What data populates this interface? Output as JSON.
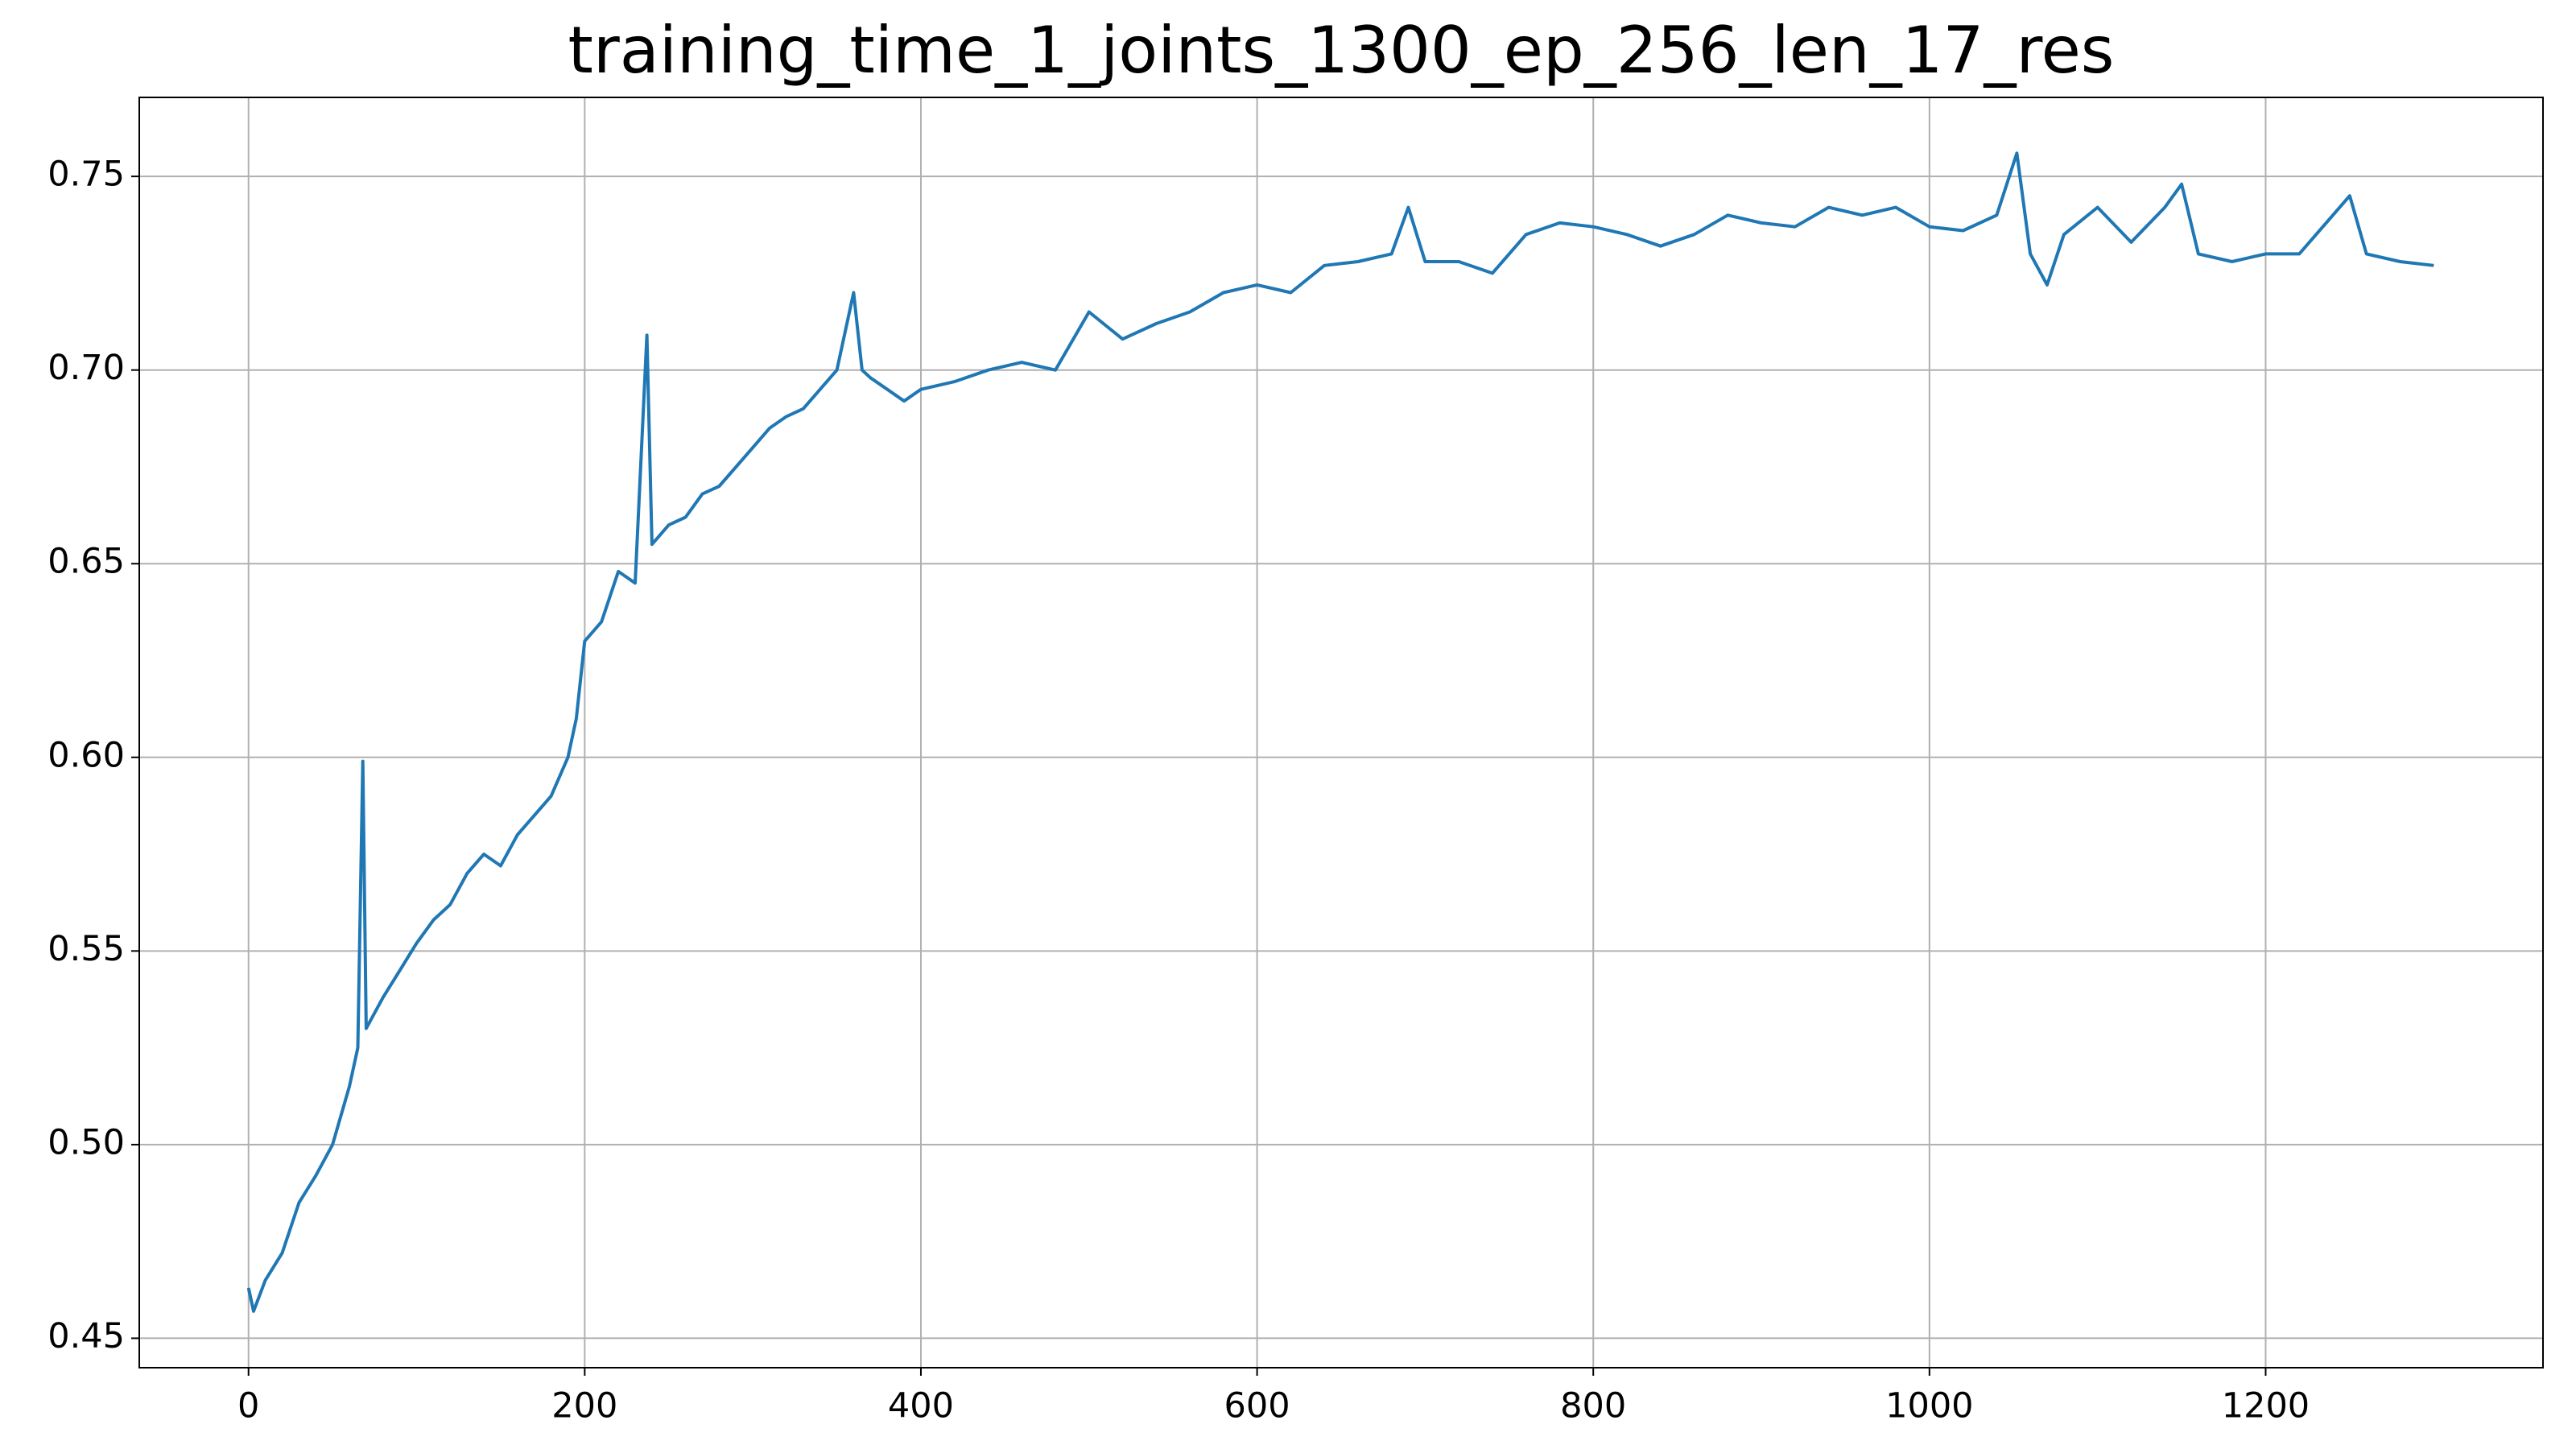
{
  "chart_data": {
    "type": "line",
    "title": "training_time_1_joints_1300_ep_256_len_17_res",
    "x": [
      0,
      3,
      10,
      20,
      30,
      40,
      50,
      60,
      65,
      68,
      70,
      80,
      90,
      100,
      110,
      120,
      130,
      140,
      150,
      160,
      170,
      180,
      190,
      195,
      200,
      210,
      220,
      230,
      237,
      240,
      250,
      260,
      270,
      280,
      290,
      300,
      310,
      320,
      330,
      340,
      350,
      360,
      365,
      370,
      380,
      390,
      400,
      420,
      440,
      460,
      480,
      500,
      520,
      540,
      560,
      580,
      600,
      620,
      640,
      660,
      680,
      690,
      700,
      720,
      740,
      760,
      780,
      800,
      820,
      840,
      860,
      880,
      900,
      920,
      940,
      960,
      980,
      1000,
      1020,
      1040,
      1052,
      1060,
      1070,
      1080,
      1100,
      1120,
      1140,
      1150,
      1160,
      1180,
      1200,
      1220,
      1240,
      1250,
      1260,
      1280,
      1300
    ],
    "series": [
      {
        "color": "#1f77b4",
        "values": [
          0.463,
          0.457,
          0.465,
          0.472,
          0.485,
          0.492,
          0.5,
          0.515,
          0.525,
          0.599,
          0.53,
          0.538,
          0.545,
          0.552,
          0.558,
          0.562,
          0.57,
          0.575,
          0.572,
          0.58,
          0.585,
          0.59,
          0.6,
          0.61,
          0.63,
          0.635,
          0.648,
          0.645,
          0.709,
          0.655,
          0.66,
          0.662,
          0.668,
          0.67,
          0.675,
          0.68,
          0.685,
          0.688,
          0.69,
          0.695,
          0.7,
          0.72,
          0.7,
          0.698,
          0.695,
          0.692,
          0.695,
          0.697,
          0.7,
          0.702,
          0.7,
          0.715,
          0.708,
          0.712,
          0.715,
          0.72,
          0.722,
          0.72,
          0.727,
          0.728,
          0.73,
          0.742,
          0.728,
          0.728,
          0.725,
          0.735,
          0.738,
          0.737,
          0.735,
          0.732,
          0.735,
          0.74,
          0.738,
          0.737,
          0.742,
          0.74,
          0.742,
          0.737,
          0.736,
          0.74,
          0.756,
          0.73,
          0.722,
          0.735,
          0.742,
          0.733,
          0.742,
          0.748,
          0.73,
          0.728,
          0.73,
          0.73,
          0.74,
          0.745,
          0.73,
          0.728,
          0.727
        ]
      }
    ],
    "xlim": [
      -65,
      1365
    ],
    "ylim": [
      0.4424,
      0.7704
    ],
    "xticks": [
      0,
      200,
      400,
      600,
      800,
      1000,
      1200
    ],
    "yticks": [
      0.45,
      {
        "value": 0.5,
        "label": "0.50"
      },
      0.55,
      {
        "value": 0.6,
        "label": "0.60"
      },
      0.65,
      {
        "value": 0.7,
        "label": "0.70"
      },
      0.75
    ],
    "grid": true
  }
}
